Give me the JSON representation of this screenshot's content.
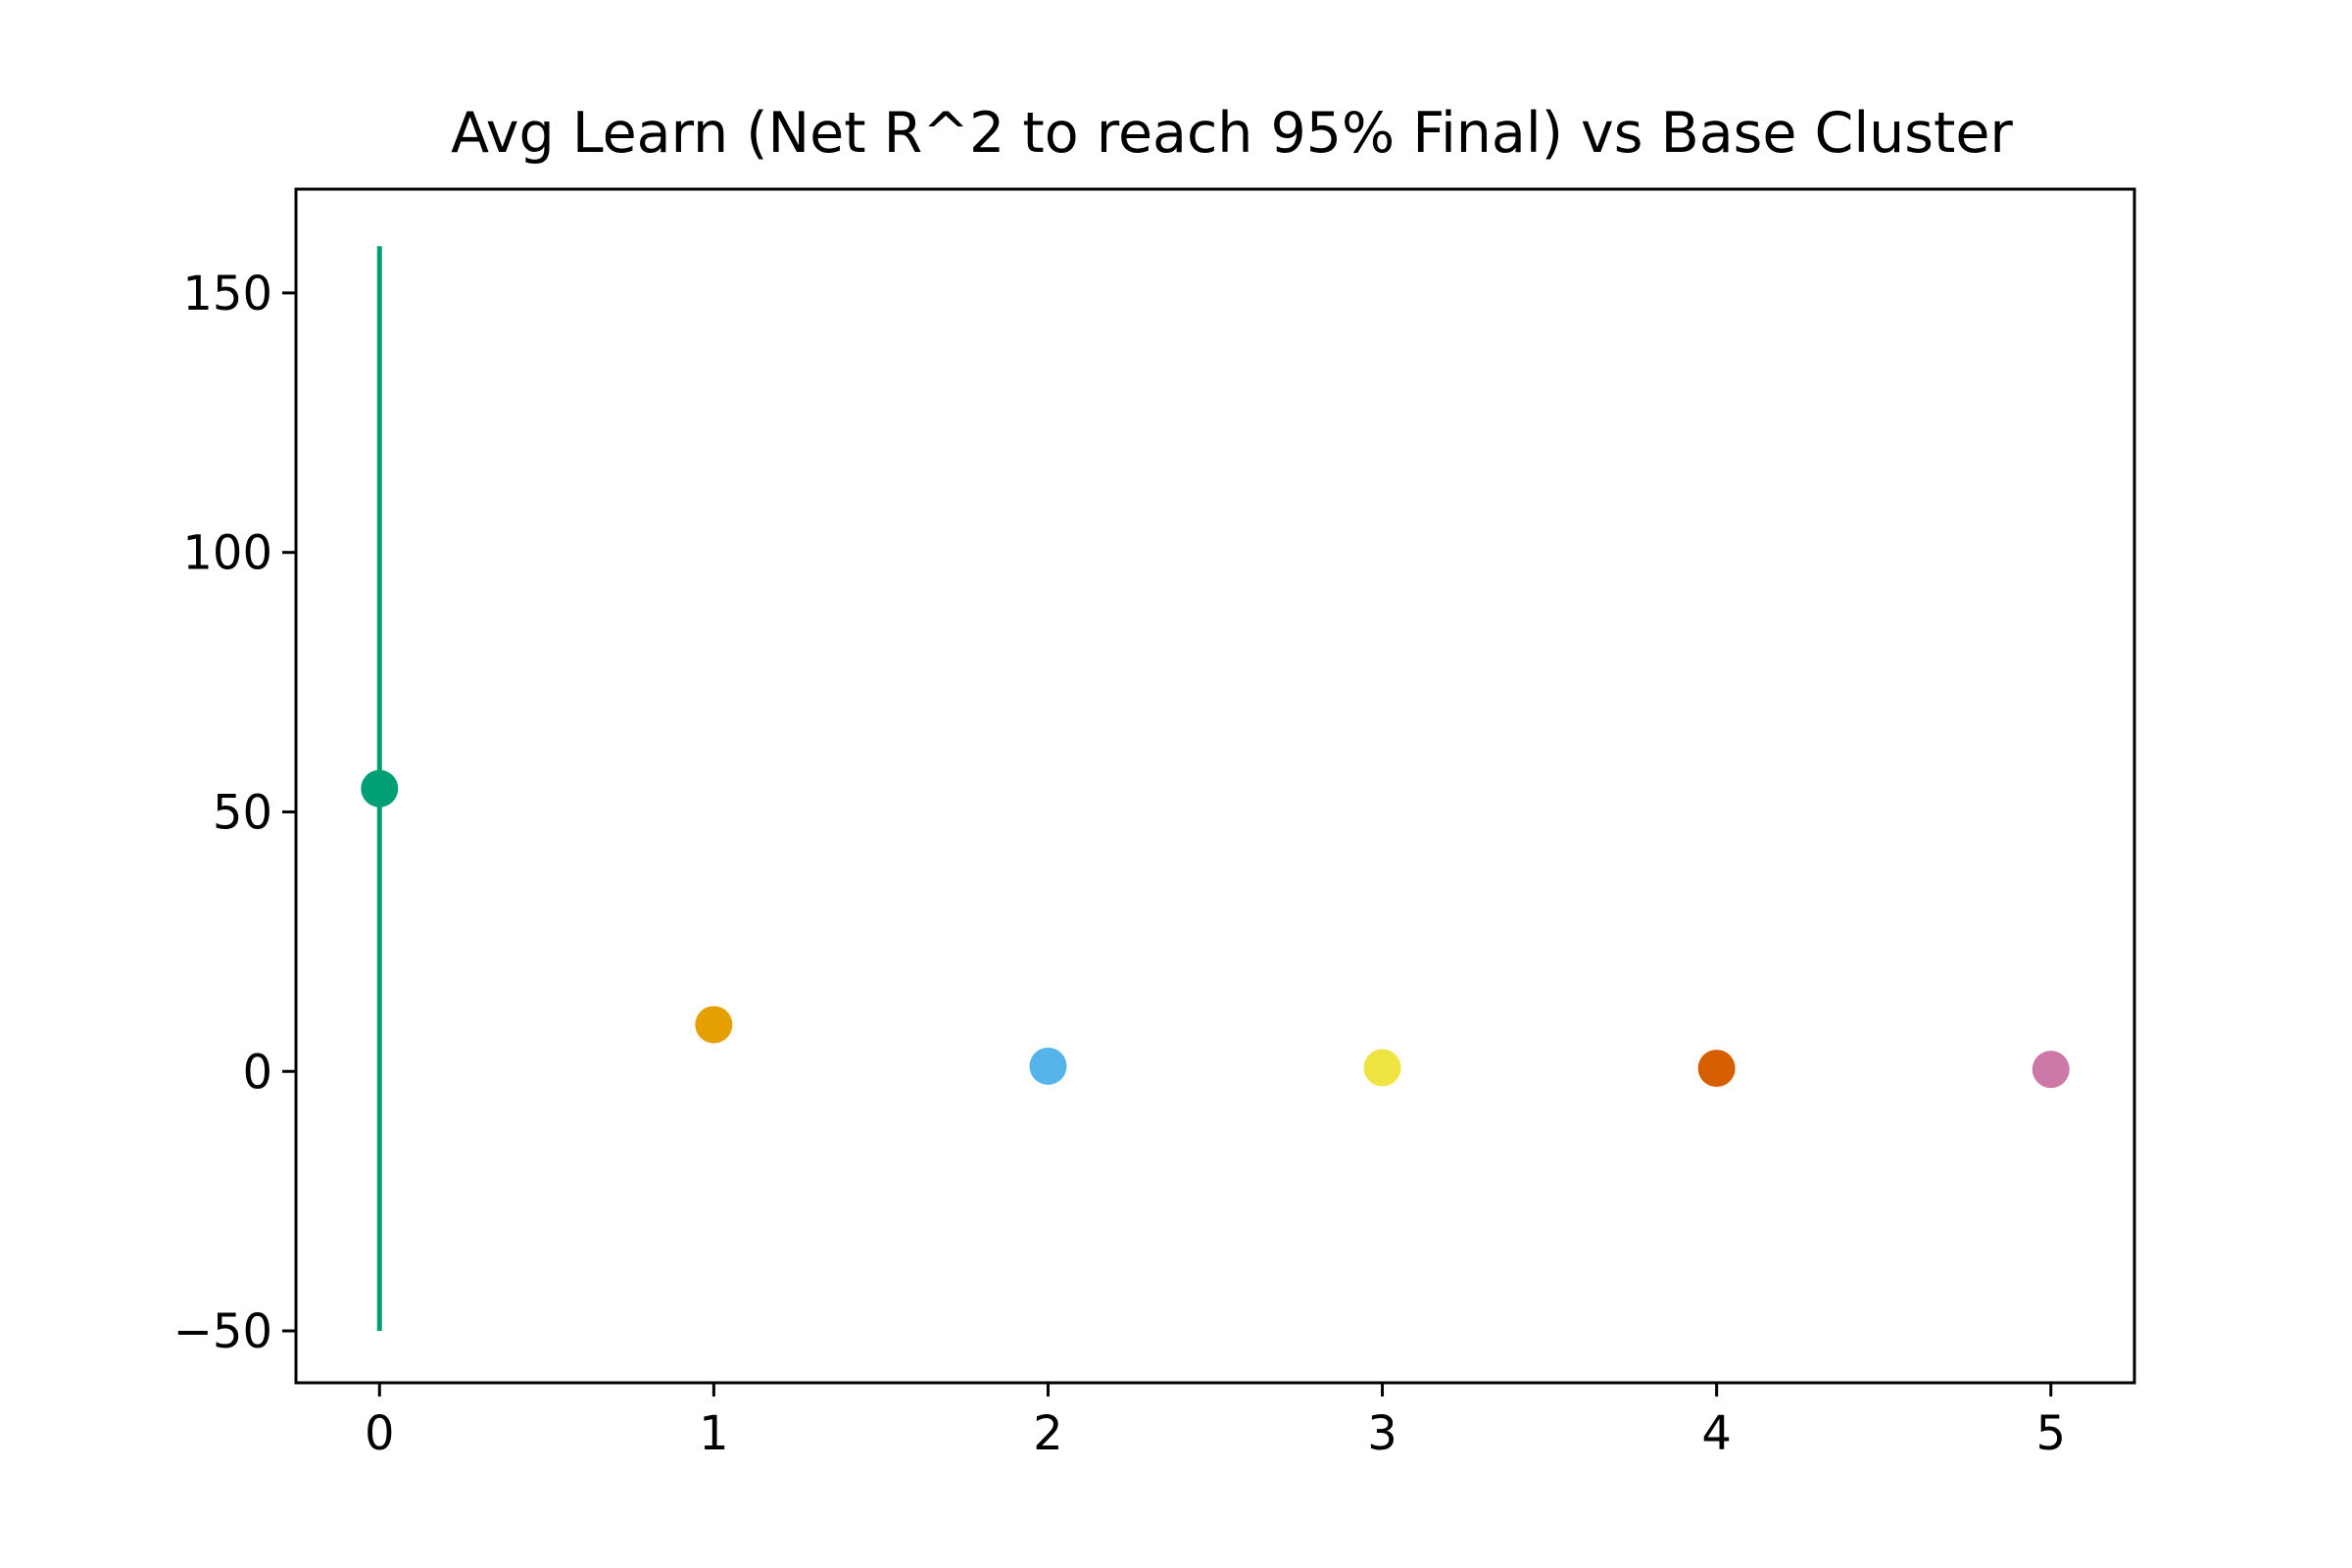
{
  "chart_data": {
    "type": "scatter",
    "title": "Avg Learn (Net R^2 to reach 95% Final) vs Base Cluster",
    "xlabel": "",
    "ylabel": "",
    "xlim": [
      -0.25,
      5.25
    ],
    "ylim": [
      -60,
      170
    ],
    "grid": false,
    "x_ticks": [
      0,
      1,
      2,
      3,
      4,
      5
    ],
    "y_ticks": [
      -50,
      0,
      50,
      100,
      150
    ],
    "points": [
      {
        "x": 0,
        "y": 54.5,
        "err_low": -50,
        "err_high": 159,
        "color": "#009e73"
      },
      {
        "x": 1,
        "y": 9,
        "color": "#e69f00"
      },
      {
        "x": 2,
        "y": 1,
        "color": "#56b4e9"
      },
      {
        "x": 3,
        "y": 0.7,
        "color": "#f0e442"
      },
      {
        "x": 4,
        "y": 0.6,
        "color": "#d55e00"
      },
      {
        "x": 5,
        "y": 0.4,
        "color": "#cc79a7"
      }
    ]
  }
}
